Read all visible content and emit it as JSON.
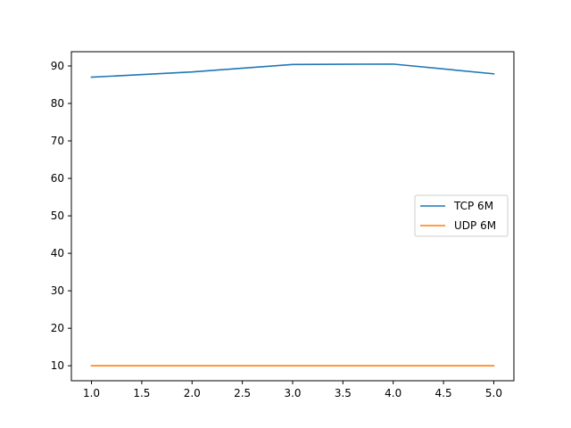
{
  "chart_data": {
    "type": "line",
    "title": "",
    "xlabel": "",
    "ylabel": "",
    "xlim": [
      0.8,
      5.2
    ],
    "ylim": [
      6.0,
      93.8
    ],
    "x_ticks": [
      1.0,
      1.5,
      2.0,
      2.5,
      3.0,
      3.5,
      4.0,
      4.5,
      5.0
    ],
    "x_tick_labels": [
      "1.0",
      "1.5",
      "2.0",
      "2.5",
      "3.0",
      "3.5",
      "4.0",
      "4.5",
      "5.0"
    ],
    "y_ticks": [
      10,
      20,
      30,
      40,
      50,
      60,
      70,
      80,
      90
    ],
    "y_tick_labels": [
      "10",
      "20",
      "30",
      "40",
      "50",
      "60",
      "70",
      "80",
      "90"
    ],
    "grid": false,
    "legend_position": "center-right",
    "x": [
      1,
      2,
      3,
      4,
      5
    ],
    "series": [
      {
        "name": "TCP 6M",
        "color": "#1f77b4",
        "values": [
          87.0,
          88.4,
          90.4,
          90.5,
          87.9
        ]
      },
      {
        "name": "UDP 6M",
        "color": "#ff7f0e",
        "values": [
          10.0,
          10.0,
          10.0,
          10.0,
          10.0
        ]
      }
    ]
  }
}
